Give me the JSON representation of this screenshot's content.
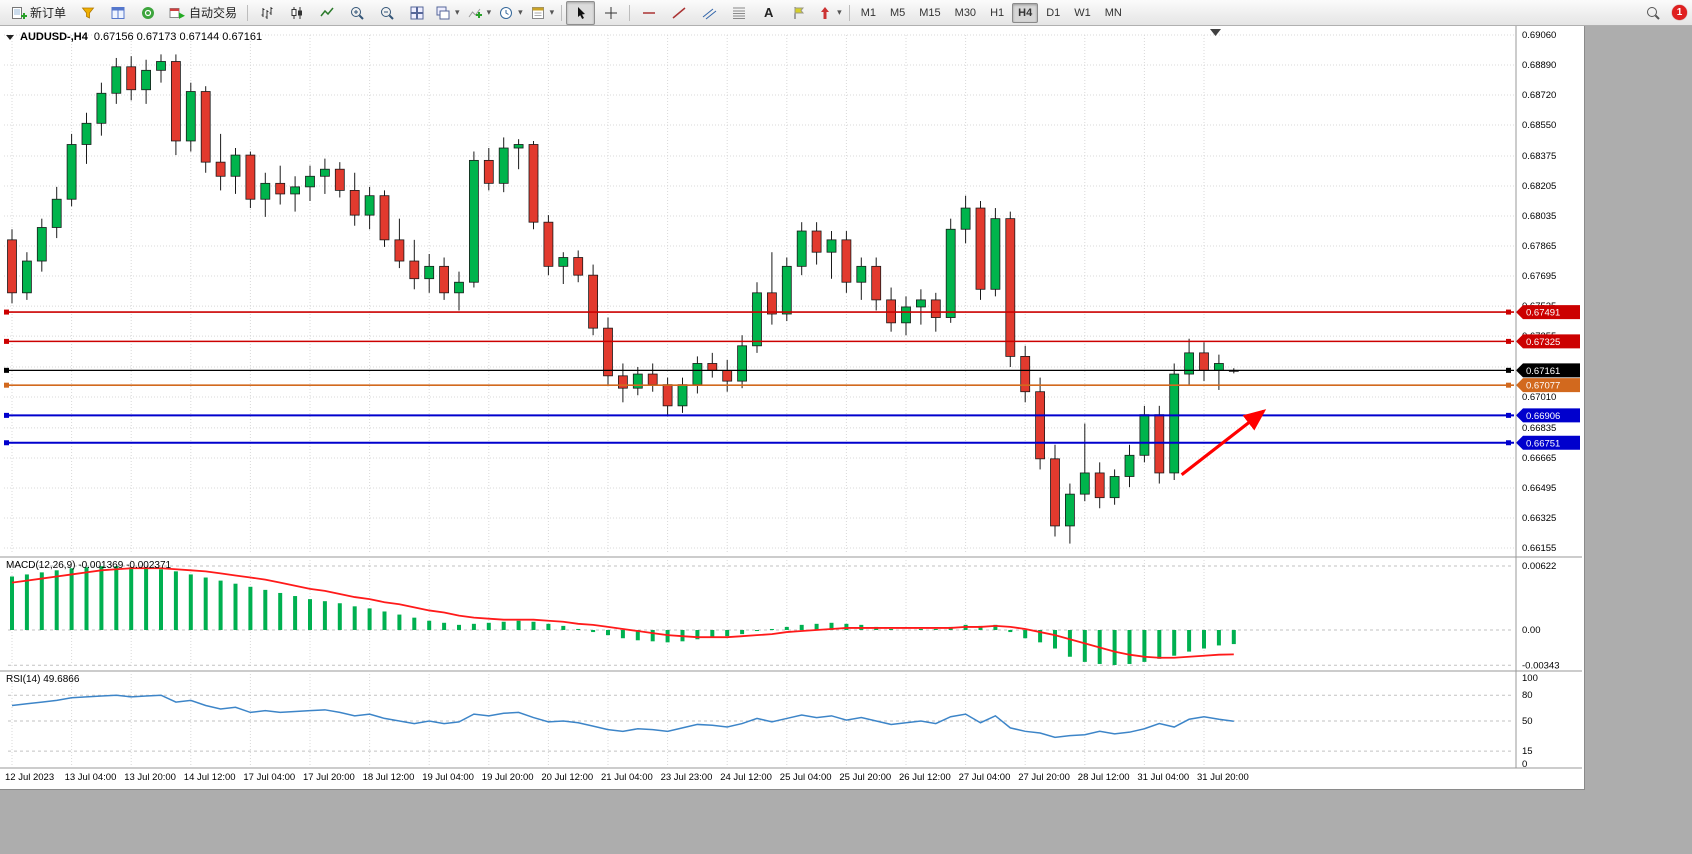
{
  "toolbar": {
    "new_order": "新订单",
    "autotrading": "自动交易",
    "text_tool": "A",
    "timeframes": [
      "M1",
      "M5",
      "M15",
      "M30",
      "H1",
      "H4",
      "D1",
      "W1",
      "MN"
    ],
    "active_timeframe": "H4",
    "notification_count": "1"
  },
  "chart": {
    "symbol": "AUDUSD-,H4",
    "ohlc": "0.67156 0.67173 0.67144 0.67161"
  },
  "chart_data": {
    "type": "candlestick",
    "title": "AUDUSD-,H4",
    "price_axis": {
      "min": 0.66155,
      "max": 0.6906,
      "ticks": [
        0.6906,
        0.6889,
        0.6872,
        0.6855,
        0.68375,
        0.68205,
        0.68035,
        0.67865,
        0.67695,
        0.67525,
        0.67355,
        0.6718,
        0.6701,
        0.66835,
        0.66665,
        0.66495,
        0.66325,
        0.66155
      ]
    },
    "time_labels": [
      "12 Jul 2023",
      "13 Jul 04:00",
      "13 Jul 20:00",
      "14 Jul 12:00",
      "17 Jul 04:00",
      "17 Jul 20:00",
      "18 Jul 12:00",
      "19 Jul 04:00",
      "19 Jul 20:00",
      "20 Jul 12:00",
      "21 Jul 04:00",
      "23 Jul 23:00",
      "24 Jul 12:00",
      "25 Jul 04:00",
      "25 Jul 20:00",
      "26 Jul 12:00",
      "27 Jul 04:00",
      "27 Jul 20:00",
      "28 Jul 12:00",
      "31 Jul 04:00",
      "31 Jul 20:00"
    ],
    "bars_per_label": 4,
    "candles": [
      [
        0.679,
        0.6796,
        0.6754,
        0.676
      ],
      [
        0.676,
        0.6783,
        0.6756,
        0.6778
      ],
      [
        0.6778,
        0.6802,
        0.6772,
        0.6797
      ],
      [
        0.6797,
        0.682,
        0.6791,
        0.6813
      ],
      [
        0.6813,
        0.685,
        0.6809,
        0.6844
      ],
      [
        0.6844,
        0.6862,
        0.6833,
        0.6856
      ],
      [
        0.6856,
        0.6879,
        0.6849,
        0.6873
      ],
      [
        0.6873,
        0.6893,
        0.6867,
        0.6888
      ],
      [
        0.6888,
        0.6894,
        0.6869,
        0.6875
      ],
      [
        0.6875,
        0.6892,
        0.6867,
        0.6886
      ],
      [
        0.6886,
        0.6895,
        0.6879,
        0.6891
      ],
      [
        0.6891,
        0.6895,
        0.6838,
        0.6846
      ],
      [
        0.6846,
        0.6879,
        0.684,
        0.6874
      ],
      [
        0.6874,
        0.6877,
        0.6828,
        0.6834
      ],
      [
        0.6834,
        0.685,
        0.6818,
        0.6826
      ],
      [
        0.6826,
        0.6842,
        0.6816,
        0.6838
      ],
      [
        0.6838,
        0.684,
        0.6808,
        0.6813
      ],
      [
        0.6813,
        0.6828,
        0.6803,
        0.6822
      ],
      [
        0.6822,
        0.6832,
        0.681,
        0.6816
      ],
      [
        0.6816,
        0.6826,
        0.6806,
        0.682
      ],
      [
        0.682,
        0.6832,
        0.6812,
        0.6826
      ],
      [
        0.6826,
        0.6836,
        0.6816,
        0.683
      ],
      [
        0.683,
        0.6834,
        0.6814,
        0.6818
      ],
      [
        0.6818,
        0.6828,
        0.6798,
        0.6804
      ],
      [
        0.6804,
        0.682,
        0.6796,
        0.6815
      ],
      [
        0.6815,
        0.6818,
        0.6786,
        0.679
      ],
      [
        0.679,
        0.6802,
        0.6774,
        0.6778
      ],
      [
        0.6778,
        0.679,
        0.6762,
        0.6768
      ],
      [
        0.6768,
        0.6782,
        0.676,
        0.6775
      ],
      [
        0.6775,
        0.678,
        0.6756,
        0.676
      ],
      [
        0.676,
        0.6772,
        0.675,
        0.6766
      ],
      [
        0.6766,
        0.684,
        0.6763,
        0.6835
      ],
      [
        0.6835,
        0.6842,
        0.6818,
        0.6822
      ],
      [
        0.6822,
        0.6848,
        0.6817,
        0.6842
      ],
      [
        0.6842,
        0.6847,
        0.683,
        0.6844
      ],
      [
        0.6844,
        0.6846,
        0.6796,
        0.68
      ],
      [
        0.68,
        0.6804,
        0.677,
        0.6775
      ],
      [
        0.6775,
        0.6783,
        0.6765,
        0.678
      ],
      [
        0.678,
        0.6784,
        0.6766,
        0.677
      ],
      [
        0.677,
        0.6776,
        0.6736,
        0.674
      ],
      [
        0.674,
        0.6746,
        0.6708,
        0.6713
      ],
      [
        0.6713,
        0.672,
        0.6698,
        0.6706
      ],
      [
        0.6706,
        0.6718,
        0.6702,
        0.6714
      ],
      [
        0.6714,
        0.672,
        0.6704,
        0.6708
      ],
      [
        0.6708,
        0.6712,
        0.669,
        0.6696
      ],
      [
        0.6696,
        0.6712,
        0.6692,
        0.6708
      ],
      [
        0.6708,
        0.6724,
        0.6703,
        0.672
      ],
      [
        0.672,
        0.6726,
        0.6712,
        0.6716
      ],
      [
        0.6716,
        0.6722,
        0.6704,
        0.671
      ],
      [
        0.671,
        0.6736,
        0.6706,
        0.673
      ],
      [
        0.673,
        0.6766,
        0.6726,
        0.676
      ],
      [
        0.676,
        0.6783,
        0.6742,
        0.6748
      ],
      [
        0.6748,
        0.678,
        0.6744,
        0.6775
      ],
      [
        0.6775,
        0.68,
        0.677,
        0.6795
      ],
      [
        0.6795,
        0.68,
        0.6776,
        0.6783
      ],
      [
        0.6783,
        0.6795,
        0.6768,
        0.679
      ],
      [
        0.679,
        0.6795,
        0.676,
        0.6766
      ],
      [
        0.6766,
        0.678,
        0.6756,
        0.6775
      ],
      [
        0.6775,
        0.678,
        0.675,
        0.6756
      ],
      [
        0.6756,
        0.6763,
        0.6738,
        0.6743
      ],
      [
        0.6743,
        0.6758,
        0.6736,
        0.6752
      ],
      [
        0.6752,
        0.6762,
        0.6742,
        0.6756
      ],
      [
        0.6756,
        0.676,
        0.6738,
        0.6746
      ],
      [
        0.6746,
        0.6802,
        0.6743,
        0.6796
      ],
      [
        0.6796,
        0.6815,
        0.6788,
        0.6808
      ],
      [
        0.6808,
        0.6812,
        0.6756,
        0.6762
      ],
      [
        0.6762,
        0.6808,
        0.6758,
        0.6802
      ],
      [
        0.6802,
        0.6806,
        0.6718,
        0.6724
      ],
      [
        0.6724,
        0.673,
        0.6698,
        0.6704
      ],
      [
        0.6704,
        0.6712,
        0.666,
        0.6666
      ],
      [
        0.6666,
        0.6674,
        0.6622,
        0.6628
      ],
      [
        0.6628,
        0.6652,
        0.6618,
        0.6646
      ],
      [
        0.6646,
        0.6686,
        0.6642,
        0.6658
      ],
      [
        0.6658,
        0.6664,
        0.6638,
        0.6644
      ],
      [
        0.6644,
        0.666,
        0.664,
        0.6656
      ],
      [
        0.6656,
        0.6674,
        0.665,
        0.6668
      ],
      [
        0.6668,
        0.6696,
        0.6664,
        0.6691
      ],
      [
        0.6691,
        0.6696,
        0.6652,
        0.6658
      ],
      [
        0.6658,
        0.672,
        0.6654,
        0.6714
      ],
      [
        0.6714,
        0.6734,
        0.6708,
        0.6726
      ],
      [
        0.6726,
        0.6732,
        0.671,
        0.6716
      ],
      [
        0.6716,
        0.6725,
        0.6705,
        0.672
      ],
      [
        0.67156,
        0.67173,
        0.67144,
        0.67161
      ]
    ],
    "hlines": [
      {
        "price": 0.67491,
        "color": "#cc0000",
        "label": "0.67491",
        "width": 1.6
      },
      {
        "price": 0.67325,
        "color": "#cc0000",
        "label": "0.67325",
        "width": 1.6
      },
      {
        "price": 0.67161,
        "color": "#000000",
        "label": "0.67161",
        "width": 1.2
      },
      {
        "price": 0.67077,
        "color": "#d2691e",
        "label": "0.67077",
        "width": 1.6
      },
      {
        "price": 0.66906,
        "color": "#0000cd",
        "label": "0.66906",
        "width": 2
      },
      {
        "price": 0.66751,
        "color": "#0000cd",
        "label": "0.66751",
        "width": 2
      }
    ],
    "arrow": {
      "x1_bar": 78.5,
      "y1_price": 0.6657,
      "x2_bar": 84,
      "y2_price": 0.6693,
      "color": "#ff0000"
    },
    "macd": {
      "label": "MACD(12,26,9) -0.001369 -0.002371",
      "axis_labels": [
        "0.00622",
        "0.00",
        "-0.00343"
      ],
      "axis_values": [
        0.00622,
        0,
        -0.00343
      ],
      "histogram": [
        0.0052,
        0.0054,
        0.0056,
        0.0058,
        0.006,
        0.0061,
        0.0062,
        0.0062,
        0.0061,
        0.006,
        0.0059,
        0.0057,
        0.0054,
        0.0051,
        0.0048,
        0.0045,
        0.0042,
        0.0039,
        0.0036,
        0.0033,
        0.003,
        0.0028,
        0.0026,
        0.0023,
        0.0021,
        0.0018,
        0.0015,
        0.0012,
        0.0009,
        0.0007,
        0.0005,
        0.0006,
        0.0007,
        0.0008,
        0.0009,
        0.0008,
        0.0006,
        0.0004,
        0.0001,
        -0.0002,
        -0.0005,
        -0.0008,
        -0.001,
        -0.0011,
        -0.0012,
        -0.0011,
        -0.0009,
        -0.0007,
        -0.0006,
        -0.0004,
        -0.0001,
        0.0001,
        0.0003,
        0.0005,
        0.0006,
        0.0007,
        0.0006,
        0.0005,
        0.0003,
        0.0001,
        0.0,
        0.0001,
        0.0001,
        0.0003,
        0.0005,
        0.0004,
        0.0005,
        -0.0002,
        -0.0008,
        -0.0012,
        -0.0018,
        -0.0026,
        -0.0031,
        -0.0033,
        -0.0034,
        -0.0033,
        -0.0031,
        -0.0028,
        -0.0025,
        -0.0021,
        -0.0018,
        -0.0015,
        -0.001369
      ],
      "signal": [
        0.0046,
        0.0048,
        0.005,
        0.0052,
        0.0054,
        0.0056,
        0.0058,
        0.0059,
        0.006,
        0.006,
        0.006,
        0.0059,
        0.0058,
        0.0057,
        0.0055,
        0.0053,
        0.0051,
        0.0049,
        0.0046,
        0.0043,
        0.004,
        0.0038,
        0.0035,
        0.0032,
        0.003,
        0.0027,
        0.0025,
        0.0022,
        0.0019,
        0.0017,
        0.0014,
        0.0012,
        0.0011,
        0.001,
        0.001,
        0.001,
        0.0009,
        0.0008,
        0.0006,
        0.0005,
        0.0003,
        0.0001,
        -0.0001,
        -0.0003,
        -0.0005,
        -0.0006,
        -0.0007,
        -0.0007,
        -0.0007,
        -0.0006,
        -0.0005,
        -0.0004,
        -0.0002,
        -0.0001,
        0.0,
        0.0001,
        0.0002,
        0.0002,
        0.0002,
        0.0002,
        0.0002,
        0.0002,
        0.0002,
        0.0002,
        0.0003,
        0.0003,
        0.0004,
        0.0003,
        0.0001,
        -0.0002,
        -0.0005,
        -0.0009,
        -0.0013,
        -0.0017,
        -0.0021,
        -0.0024,
        -0.0026,
        -0.0027,
        -0.0027,
        -0.0026,
        -0.0025,
        -0.0024,
        -0.002371
      ],
      "colors": {
        "histogram": "#00b050",
        "signal": "#ff1a1a"
      }
    },
    "rsi": {
      "label": "RSI(14) 49.6866",
      "axis_labels": [
        "100",
        "80",
        "50",
        "15",
        "0"
      ],
      "axis_values": [
        100,
        80,
        50,
        15,
        0
      ],
      "level_lines": [
        80,
        50,
        15
      ],
      "values": [
        68,
        70,
        72,
        74,
        77,
        78,
        79,
        80,
        78,
        79,
        80,
        72,
        74,
        68,
        64,
        66,
        60,
        62,
        60,
        61,
        62,
        63,
        60,
        56,
        58,
        53,
        50,
        47,
        50,
        47,
        49,
        58,
        56,
        59,
        60,
        54,
        49,
        50,
        48,
        44,
        40,
        38,
        41,
        40,
        38,
        42,
        46,
        45,
        43,
        47,
        53,
        49,
        53,
        57,
        54,
        56,
        51,
        54,
        50,
        46,
        48,
        50,
        47,
        55,
        58,
        48,
        56,
        42,
        38,
        36,
        31,
        33,
        34,
        38,
        35,
        37,
        41,
        47,
        43,
        52,
        55,
        52,
        49.6866
      ],
      "color": "#3d85c8"
    },
    "candle_colors": {
      "up": "#00b44c",
      "down": "#e23a2e",
      "outline": "#1a1a1a"
    }
  }
}
